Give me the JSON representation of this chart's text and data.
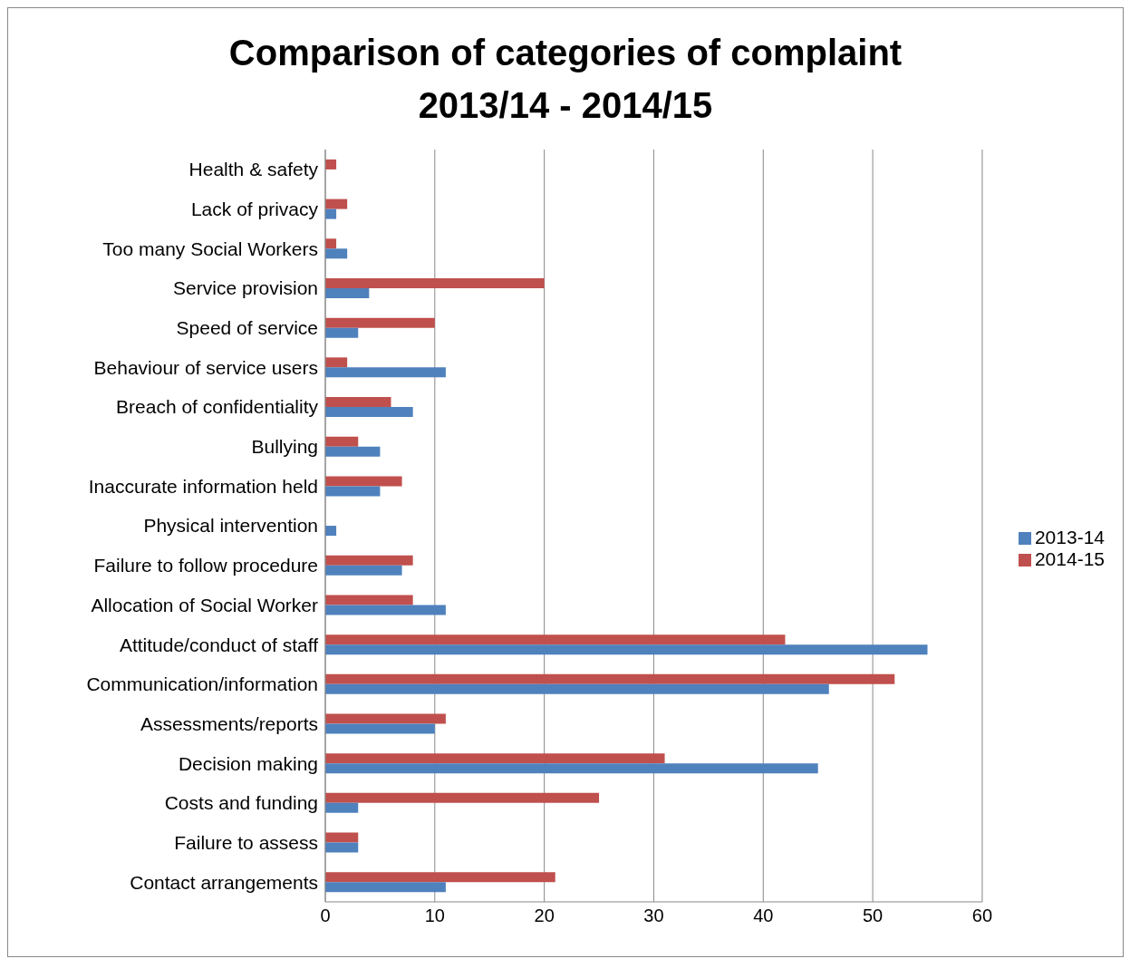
{
  "chart_data": {
    "type": "bar",
    "orientation": "horizontal",
    "title": "Comparison of categories of complaint 2013/14 - 2014/15",
    "categories": [
      "Health & safety",
      "Lack of privacy",
      "Too many Social Workers",
      "Service provision",
      "Speed of service",
      "Behaviour of service users",
      "Breach of confidentiality",
      "Bullying",
      "Inaccurate information held",
      "Physical intervention",
      "Failure to follow procedure",
      "Allocation of Social Worker",
      "Attitude/conduct of staff",
      "Communication/information",
      "Assessments/reports",
      "Decision making",
      "Costs and funding",
      "Failure to assess",
      "Contact arrangements"
    ],
    "series": [
      {
        "name": "2014-15",
        "color": "#c0504d",
        "values": [
          1,
          2,
          1,
          20,
          10,
          2,
          6,
          3,
          7,
          0,
          8,
          8,
          42,
          52,
          11,
          31,
          25,
          3,
          21
        ]
      },
      {
        "name": "2013-14",
        "color": "#4f81bd",
        "values": [
          0,
          1,
          2,
          4,
          3,
          11,
          8,
          5,
          5,
          1,
          7,
          11,
          55,
          46,
          10,
          45,
          3,
          3,
          11
        ]
      }
    ],
    "xlim": [
      0,
      60
    ],
    "xticks": [
      0,
      10,
      20,
      30,
      40,
      50,
      60
    ],
    "grid": "x",
    "legend": "right"
  }
}
